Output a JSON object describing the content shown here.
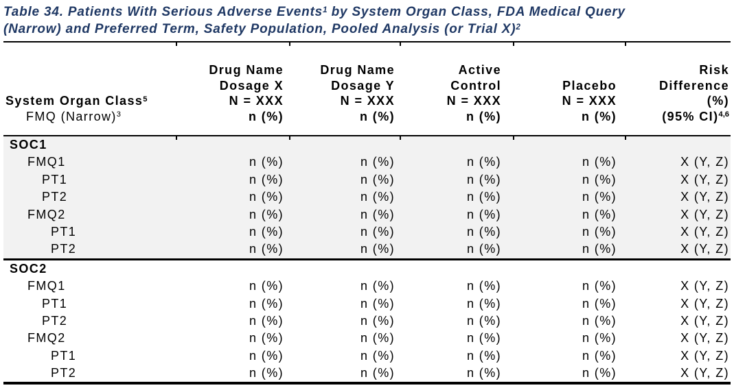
{
  "title": {
    "line1_pre": "Table 34. Patients With Serious Adverse Events",
    "line1_sup": "1",
    "line1_post": " by System Organ Class, FDA Medical Query",
    "line2": "(Narrow) and Preferred Term, Safety Population, Pooled Analysis (or Trial X)",
    "line2_sup": "2"
  },
  "header": {
    "row_label": {
      "soc": "System Organ Class",
      "soc_sup": "5",
      "fmq": "FMQ (Narrow)",
      "fmq_sup": "3"
    },
    "columns": [
      {
        "lines": [
          "Drug Name",
          "Dosage X",
          "N = XXX",
          "n (%)"
        ]
      },
      {
        "lines": [
          "Drug Name",
          "Dosage Y",
          "N = XXX",
          "n (%)"
        ]
      },
      {
        "lines": [
          "Active",
          "Control",
          "N = XXX",
          "n (%)"
        ]
      },
      {
        "lines": [
          "",
          "Placebo",
          "N = XXX",
          "n (%)"
        ]
      },
      {
        "lines": [
          "Risk",
          "Difference",
          "(%)"
        ],
        "last": "(95% CI)",
        "last_sup": "4,6"
      }
    ]
  },
  "rows": [
    {
      "label": "SOC1",
      "indent": 0,
      "section": "SOC1",
      "values": [
        "",
        "",
        "",
        "",
        ""
      ]
    },
    {
      "label": "FMQ1",
      "indent": 1,
      "section": "SOC1",
      "values": [
        "n (%)",
        "n (%)",
        "n (%)",
        "n (%)",
        "X (Y, Z)"
      ]
    },
    {
      "label": "PT1",
      "indent": 2,
      "section": "SOC1",
      "values": [
        "n (%)",
        "n (%)",
        "n (%)",
        "n (%)",
        "X (Y, Z)"
      ]
    },
    {
      "label": "PT2",
      "indent": 2,
      "section": "SOC1",
      "values": [
        "n (%)",
        "n (%)",
        "n (%)",
        "n (%)",
        "X (Y, Z)"
      ]
    },
    {
      "label": "FMQ2",
      "indent": 1,
      "section": "SOC1",
      "values": [
        "n (%)",
        "n (%)",
        "n (%)",
        "n (%)",
        "X (Y, Z)"
      ]
    },
    {
      "label": "PT1",
      "indent": 3,
      "section": "SOC1",
      "values": [
        "n (%)",
        "n (%)",
        "n (%)",
        "n (%)",
        "X (Y, Z)"
      ]
    },
    {
      "label": "PT2",
      "indent": 3,
      "section": "SOC1",
      "values": [
        "n (%)",
        "n (%)",
        "n (%)",
        "n (%)",
        "X (Y, Z)"
      ]
    },
    {
      "label": "SOC2",
      "indent": 0,
      "section": "SOC2",
      "values": [
        "",
        "",
        "",
        "",
        ""
      ]
    },
    {
      "label": "FMQ1",
      "indent": 1,
      "section": "SOC2",
      "values": [
        "n (%)",
        "n (%)",
        "n (%)",
        "n (%)",
        "X (Y, Z)"
      ]
    },
    {
      "label": "PT1",
      "indent": 2,
      "section": "SOC2",
      "values": [
        "n (%)",
        "n (%)",
        "n (%)",
        "n (%)",
        "X (Y, Z)"
      ]
    },
    {
      "label": "PT2",
      "indent": 2,
      "section": "SOC2",
      "values": [
        "n (%)",
        "n (%)",
        "n (%)",
        "n (%)",
        "X (Y, Z)"
      ]
    },
    {
      "label": "FMQ2",
      "indent": 1,
      "section": "SOC2",
      "values": [
        "n (%)",
        "n (%)",
        "n (%)",
        "n (%)",
        "X (Y, Z)"
      ]
    },
    {
      "label": "PT1",
      "indent": 3,
      "section": "SOC2",
      "values": [
        "n (%)",
        "n (%)",
        "n (%)",
        "n (%)",
        "X (Y, Z)"
      ]
    },
    {
      "label": "PT2",
      "indent": 3,
      "section": "SOC2",
      "values": [
        "n (%)",
        "n (%)",
        "n (%)",
        "n (%)",
        "X (Y, Z)"
      ]
    }
  ],
  "colors": {
    "title_text": "#1F3864",
    "section_band": "#F2F2F2",
    "border": "#000000"
  }
}
